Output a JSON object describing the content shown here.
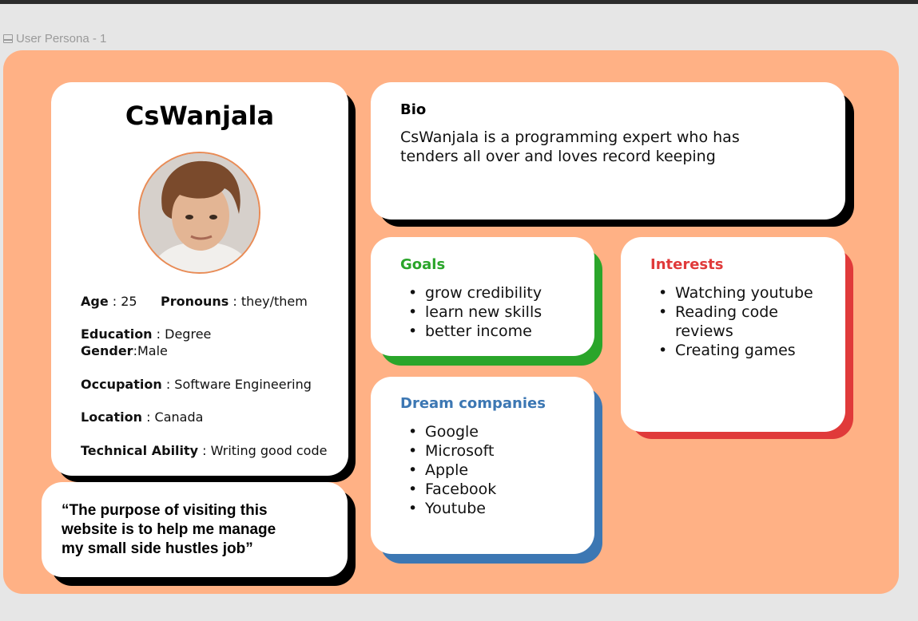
{
  "frame": {
    "label": "User Persona - 1"
  },
  "profile": {
    "name": "CsWanjala",
    "fields": {
      "age_label": "Age",
      "age_value": " : 25",
      "pronouns_label": "Pronouns",
      "pronouns_value": " : they/them",
      "education_label": "Education",
      "education_value": " : Degree",
      "gender_label": "Gender",
      "gender_value": ":Male",
      "occupation_label": "Occupation",
      "occupation_value": " : Software Engineering",
      "location_label": "Location",
      "location_value": " : Canada",
      "technical_label": "Technical Ability",
      "technical_value": " : Writing good code"
    }
  },
  "quote": {
    "line1": "“The purpose of visiting this",
    "line2": "website is to help me manage",
    "line3": "my small side hustles job”"
  },
  "bio": {
    "title": "Bio",
    "line1": "CsWanjala is a programming expert who has",
    "line2": "tenders all over and loves record keeping"
  },
  "goals": {
    "title": "Goals",
    "items": [
      "grow credibility",
      "learn new skills",
      "better income"
    ]
  },
  "interests": {
    "title": "Interests",
    "items": [
      "Watching youtube",
      "Reading code reviews",
      "Creating games"
    ]
  },
  "dream": {
    "title": "Dream companies",
    "items": [
      "Google",
      "Microsoft",
      "Apple",
      "Facebook",
      "Youtube"
    ]
  },
  "colors": {
    "board": "#ffb185",
    "goals": "#2aa52a",
    "interests": "#e03a3a",
    "dream": "#3c77b3"
  }
}
